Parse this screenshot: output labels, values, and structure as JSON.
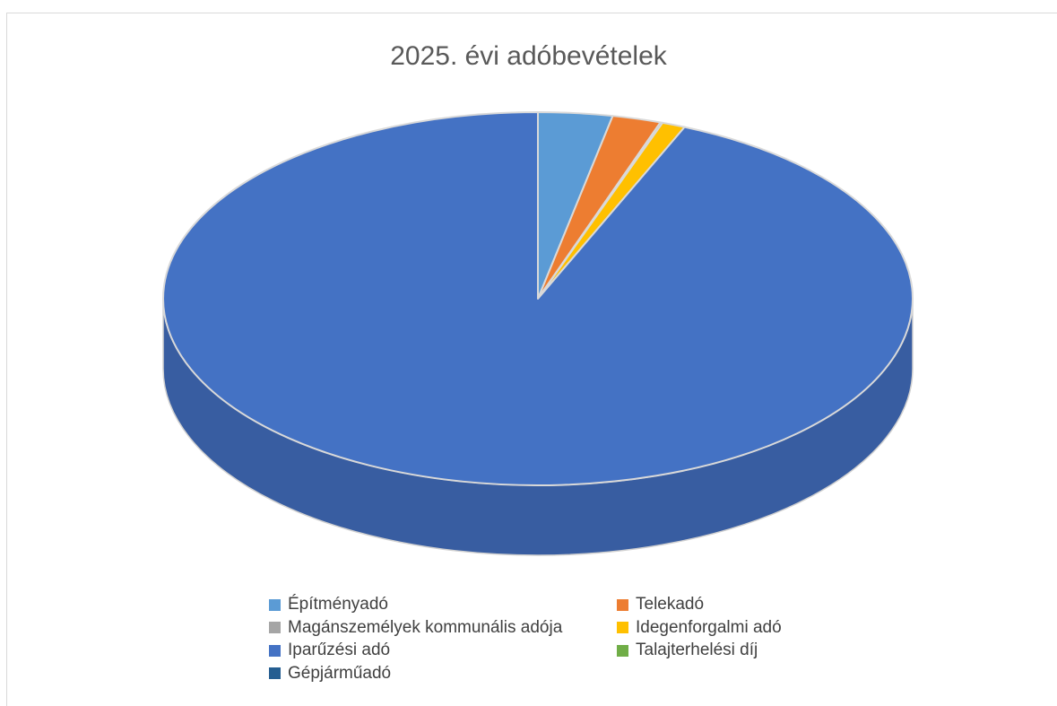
{
  "chart_data": {
    "type": "pie",
    "title": "2025. évi adóbevételek",
    "style": "3d",
    "legend_position": "bottom",
    "categories": [
      "Építményadó",
      "Telekadó",
      "Magánszemélyek kommunális adója",
      "Idegenforgalmi adó",
      "Iparűzési adó",
      "Talajterhelési díj",
      "Gépjárműadó"
    ],
    "values": [
      3.2,
      2.1,
      0.1,
      1.0,
      93.6,
      0.0,
      0.0
    ],
    "colors": [
      "#5B9BD5",
      "#ED7D31",
      "#A5A5A5",
      "#FFC000",
      "#4472C4",
      "#70AD47",
      "#255E91"
    ]
  }
}
